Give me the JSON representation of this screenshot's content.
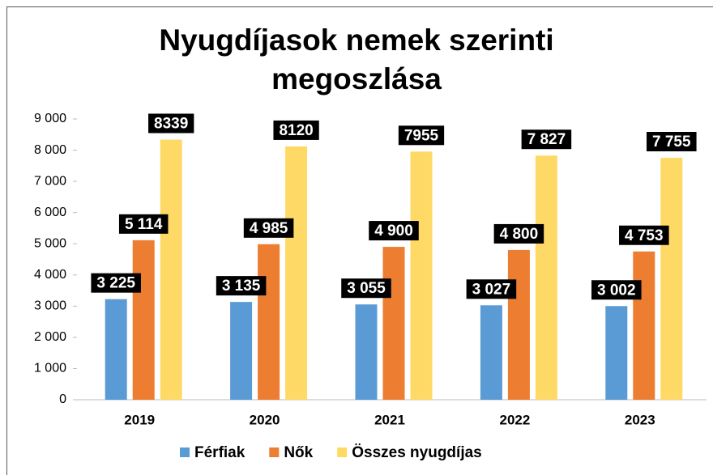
{
  "chart_data": {
    "type": "bar",
    "title": "Nyugdíjasok nemek szerinti megoszlása",
    "categories": [
      "2019",
      "2020",
      "2021",
      "2022",
      "2023"
    ],
    "series": [
      {
        "name": "Férfiak",
        "color": "#5b9bd5",
        "values": [
          3225,
          3135,
          3055,
          3027,
          3002
        ],
        "value_labels": [
          "3 225",
          "3 135",
          "3 055",
          "3 027",
          "3 002"
        ]
      },
      {
        "name": "Nők",
        "color": "#ed7d31",
        "values": [
          5114,
          4985,
          4900,
          4800,
          4753
        ],
        "value_labels": [
          "5 114",
          "4 985",
          "4 900",
          "4 800",
          "4 753"
        ]
      },
      {
        "name": "Összes nyugdíjas",
        "color": "#ffd966",
        "values": [
          8339,
          8120,
          7955,
          7827,
          7755
        ],
        "value_labels": [
          "8339",
          "8120",
          "7955",
          "7 827",
          "7 755"
        ]
      }
    ],
    "ylim": [
      0,
      9000
    ],
    "yticks": [
      0,
      {
        "value": 1000,
        "label": "1 000"
      },
      {
        "value": 2000,
        "label": "2 000"
      },
      {
        "value": 3000,
        "label": "3 000"
      },
      {
        "value": 4000,
        "label": "4 000"
      },
      {
        "value": 5000,
        "label": "5 000"
      },
      {
        "value": 6000,
        "label": "6 000"
      },
      {
        "value": 7000,
        "label": "7 000"
      },
      {
        "value": 8000,
        "label": "8 000"
      },
      {
        "value": 9000,
        "label": "9 000"
      }
    ],
    "grid": false,
    "legend": "bottom"
  }
}
